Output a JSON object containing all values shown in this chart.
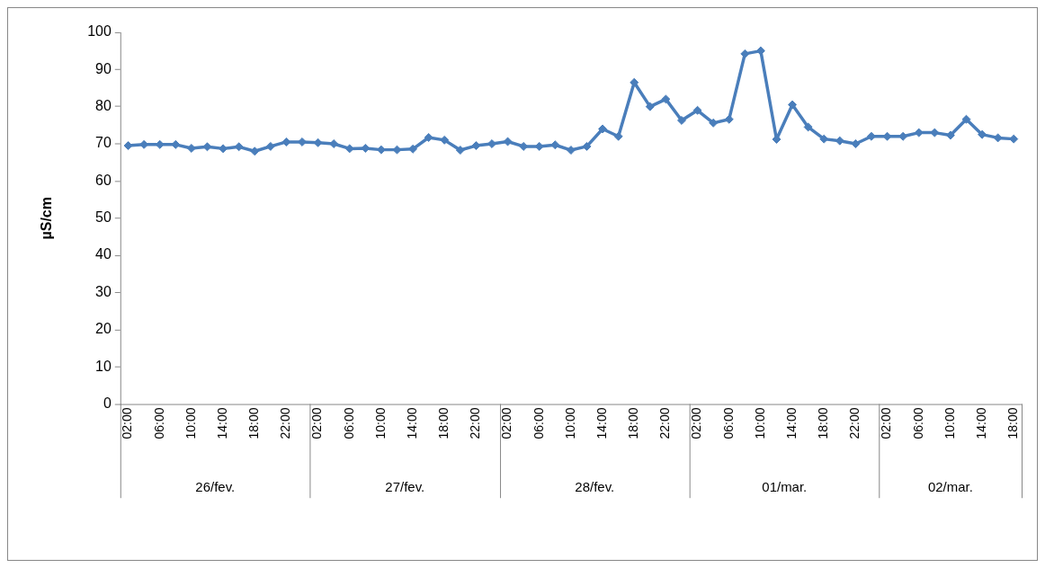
{
  "chart_data": {
    "type": "line",
    "ylabel": "µS/cm",
    "categories": [
      "02:00",
      null,
      "06:00",
      null,
      "10:00",
      null,
      "14:00",
      null,
      "18:00",
      null,
      "22:00",
      null,
      "02:00",
      null,
      "06:00",
      null,
      "10:00",
      null,
      "14:00",
      null,
      "18:00",
      null,
      "22:00",
      null,
      "02:00",
      null,
      "06:00",
      null,
      "10:00",
      null,
      "14:00",
      null,
      "18:00",
      null,
      "22:00",
      null,
      "02:00",
      null,
      "06:00",
      null,
      "10:00",
      null,
      "14:00",
      null,
      "18:00",
      null,
      "22:00",
      null,
      "02:00",
      null,
      "06:00",
      null,
      "10:00",
      null,
      "14:00",
      null,
      "18:00"
    ],
    "series": [
      {
        "color": "#4a7ebb",
        "values": [
          69.5,
          69.8,
          69.8,
          69.8,
          68.8,
          69.2,
          68.7,
          69.2,
          68.0,
          69.3,
          70.5,
          70.5,
          70.3,
          70.0,
          68.7,
          68.8,
          68.4,
          68.4,
          68.6,
          71.7,
          71.0,
          68.3,
          69.5,
          70.0,
          70.6,
          69.3,
          69.3,
          69.7,
          68.3,
          69.3,
          74.0,
          72.0,
          86.5,
          80.0,
          82.0,
          76.3,
          79.0,
          75.6,
          76.6,
          94.2,
          95.0,
          71.2,
          80.5,
          74.5,
          71.3,
          70.8,
          70.0,
          72.0,
          72.0,
          72.0,
          73.0,
          73.0,
          72.3,
          76.6,
          72.5,
          71.6,
          71.3
        ]
      }
    ],
    "ylim": [
      0,
      100
    ],
    "yticks": [
      0,
      10,
      20,
      30,
      40,
      50,
      60,
      70,
      80,
      90,
      100
    ],
    "marker": "diamond",
    "legend": false,
    "annotations": [
      "26/fev.",
      "27/fev.",
      "28/fev.",
      "01/mar.",
      "02/mar."
    ]
  }
}
